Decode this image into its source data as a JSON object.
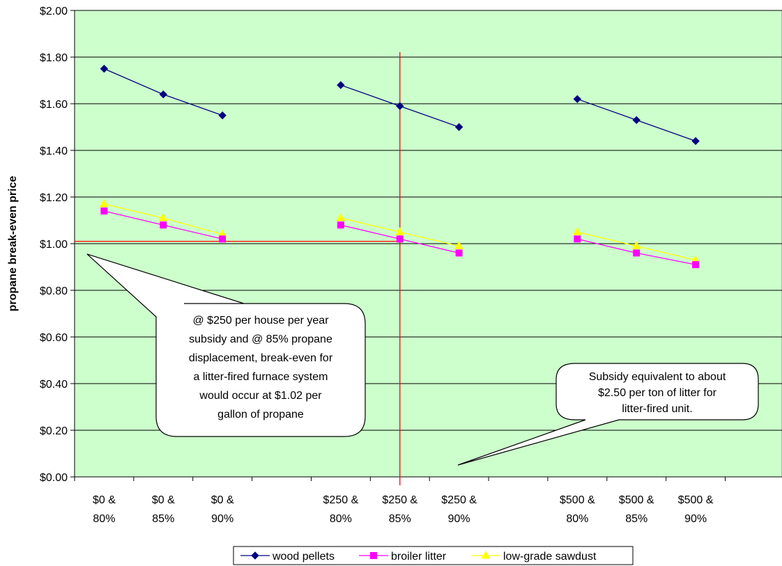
{
  "chart_data": {
    "type": "line",
    "ylabel": "propane break-even price",
    "xlabel": "",
    "ylim": [
      0,
      2
    ],
    "y_tick_step": 0.2,
    "y_tick_labels": [
      "$0.00",
      "$0.20",
      "$0.40",
      "$0.60",
      "$0.80",
      "$1.00",
      "$1.20",
      "$1.40",
      "$1.60",
      "$1.80",
      "$2.00"
    ],
    "categories": [
      [
        "$0 &",
        "80%"
      ],
      [
        "$0 &",
        "85%"
      ],
      [
        "$0 &",
        "90%"
      ],
      [
        "",
        ""
      ],
      [
        "$250 &",
        "80%"
      ],
      [
        "$250 &",
        "85%"
      ],
      [
        "$250 &",
        "90%"
      ],
      [
        "",
        ""
      ],
      [
        "$500 &",
        "80%"
      ],
      [
        "$500 &",
        "85%"
      ],
      [
        "$500 &",
        "90%"
      ]
    ],
    "series": [
      {
        "name": "wood pellets",
        "color": "#000080",
        "marker": "diamond",
        "values": [
          1.75,
          1.64,
          1.55,
          null,
          1.68,
          1.59,
          1.5,
          null,
          1.62,
          1.53,
          1.44
        ]
      },
      {
        "name": "broiler litter",
        "color": "#ff00ff",
        "marker": "square",
        "values": [
          1.14,
          1.08,
          1.02,
          null,
          1.08,
          1.02,
          0.96,
          null,
          1.02,
          0.96,
          0.91
        ]
      },
      {
        "name": "low-grade sawdust",
        "color": "#ffff00",
        "marker": "triangle",
        "values": [
          1.17,
          1.11,
          1.04,
          null,
          1.11,
          1.05,
          0.99,
          null,
          1.05,
          0.99,
          0.93
        ]
      }
    ],
    "reference_lines": {
      "horizontal_y": 1.01,
      "vertical_category_index": 5,
      "color": "#ff0000"
    },
    "annotations": [
      {
        "name": "callout-left",
        "lines": [
          "@ $250 per house per year",
          "subsidy and @ 85% propane",
          "displacement, break-even for",
          "a litter-fired furnace system",
          "would occur at $1.02 per",
          "gallon of propane"
        ]
      },
      {
        "name": "callout-right",
        "lines": [
          "Subsidy equivalent to about",
          "$2.50 per ton of litter for",
          "litter-fired unit."
        ]
      }
    ],
    "plot_background": "#ccffcc",
    "grid": true,
    "legend_position": "bottom"
  }
}
